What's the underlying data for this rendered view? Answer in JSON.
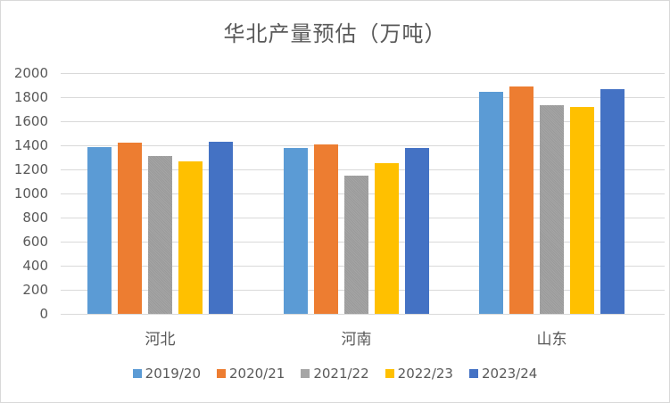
{
  "chart_data": {
    "type": "bar",
    "title": "华北产量预估（万吨）",
    "xlabel": "",
    "ylabel": "",
    "ylim": [
      0,
      2000
    ],
    "yticks": [
      0,
      200,
      400,
      600,
      800,
      1000,
      1200,
      1400,
      1600,
      1800,
      2000
    ],
    "grid": true,
    "legend_position": "bottom",
    "categories": [
      "河北",
      "河南",
      "山东"
    ],
    "series": [
      {
        "name": "2019/20",
        "color": "#5b9bd5",
        "values": [
          1385,
          1378,
          1845
        ]
      },
      {
        "name": "2020/21",
        "color": "#ed7d31",
        "values": [
          1420,
          1405,
          1888
        ]
      },
      {
        "name": "2021/22",
        "color": "#a5a5a5",
        "values": [
          1310,
          1145,
          1733
        ]
      },
      {
        "name": "2022/23",
        "color": "#ffc000",
        "values": [
          1265,
          1250,
          1718
        ]
      },
      {
        "name": "2023/24",
        "color": "#4472c4",
        "values": [
          1430,
          1378,
          1865
        ]
      }
    ]
  }
}
